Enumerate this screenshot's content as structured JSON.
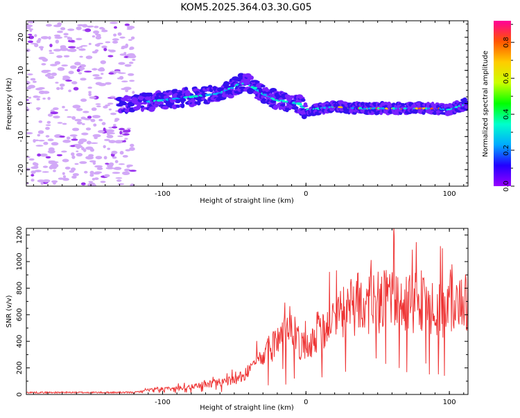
{
  "title": "KOM5.2025.364.03.30.G05",
  "chart_data": [
    {
      "type": "heatmap",
      "name": "spectrogram",
      "xlabel": "Height of straight line (km)",
      "ylabel": "Frequency (Hz)",
      "xlim": [
        -195,
        113
      ],
      "ylim": [
        -25,
        25
      ],
      "xticks": [
        -100,
        0,
        100
      ],
      "yticks": [
        -20,
        -10,
        0,
        10,
        20
      ],
      "ridge": {
        "x": [
          -195,
          -120,
          -100,
          -80,
          -60,
          -45,
          -40,
          -30,
          -20,
          -5,
          0,
          20,
          40,
          60,
          80,
          95,
          100,
          113
        ],
        "y": [
          0,
          0,
          1,
          2,
          3,
          6,
          6,
          3,
          1,
          0,
          -2,
          -1,
          -1.5,
          -1.5,
          -1.5,
          -1.5,
          -2,
          0
        ]
      },
      "colorbar": {
        "label": "Normalized spectral amplitude",
        "range": [
          0,
          0.92
        ],
        "ticks": [
          "0.0",
          "0.2",
          "0.4",
          "0.6",
          "0.8"
        ],
        "colormap": [
          "#9900ff",
          "#2200ff",
          "#00aaff",
          "#00ffcc",
          "#00ff00",
          "#ccff00",
          "#ffcc00",
          "#ff5500",
          "#ff0099"
        ]
      }
    },
    {
      "type": "line",
      "name": "snr",
      "xlabel": "Height of straight line (km)",
      "ylabel": "SNR (v/v)",
      "xlim": [
        -195,
        113
      ],
      "ylim": [
        0,
        1250
      ],
      "xticks": [
        -100,
        0,
        100
      ],
      "yticks": [
        0,
        200,
        400,
        600,
        800,
        1000,
        1200
      ],
      "line_color": "#ee3333",
      "envelope": {
        "x": [
          -195,
          -120,
          -105,
          -90,
          -75,
          -60,
          -45,
          -30,
          -20,
          -10,
          0,
          10,
          20,
          30,
          40,
          60,
          80,
          90,
          95,
          100,
          105,
          113
        ],
        "y": [
          15,
          15,
          40,
          45,
          70,
          90,
          130,
          280,
          400,
          470,
          330,
          520,
          560,
          660,
          690,
          710,
          690,
          650,
          620,
          720,
          660,
          700
        ]
      }
    }
  ]
}
